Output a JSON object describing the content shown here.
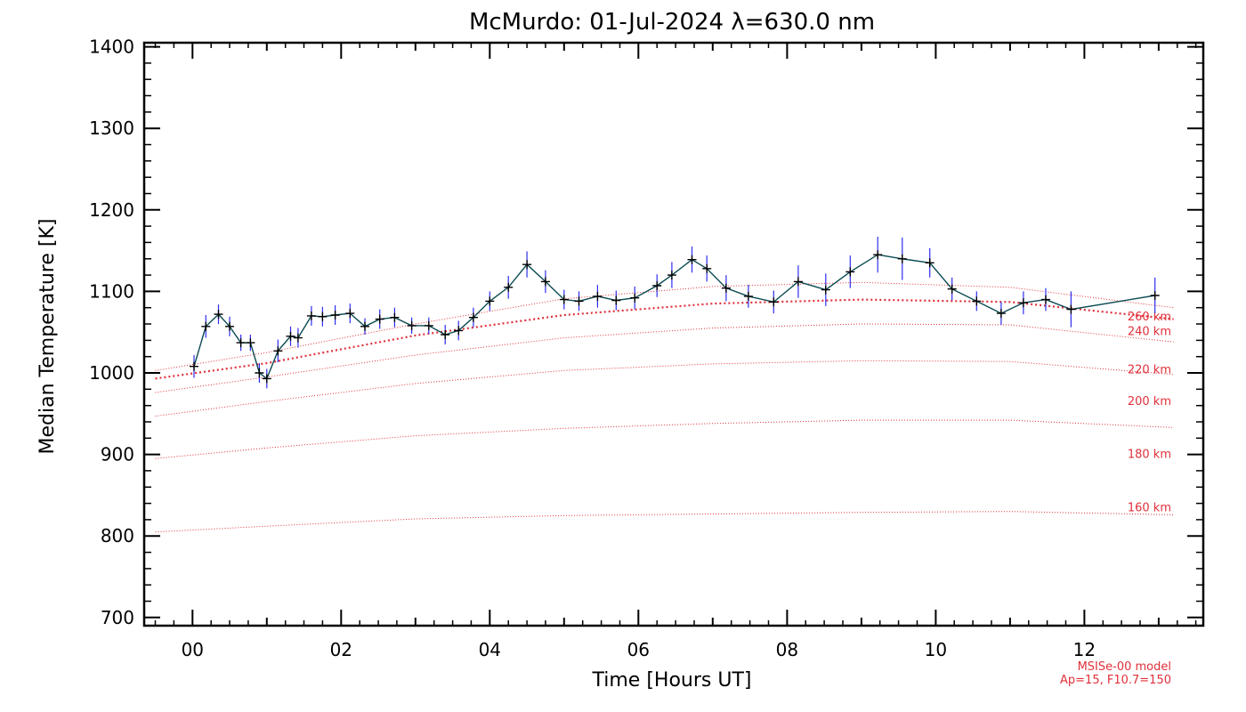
{
  "chart_data": {
    "type": "line",
    "title": "McMurdo: 01-Jul-2024 λ=630.0 nm",
    "xlabel": "Time [Hours UT]",
    "ylabel": "Median Temperature [K]",
    "xlim": [
      -0.65,
      13.6
    ],
    "ylim": [
      690,
      1405
    ],
    "x_ticks": [
      0,
      2,
      4,
      6,
      8,
      10,
      12
    ],
    "x_tick_labels": [
      "00",
      "02",
      "04",
      "06",
      "08",
      "10",
      "12"
    ],
    "y_ticks": [
      700,
      800,
      900,
      1000,
      1100,
      1200,
      1300,
      1400
    ],
    "y_tick_labels": [
      "700",
      "800",
      "900",
      "1000",
      "1100",
      "1200",
      "1300",
      "1400"
    ],
    "grid": false,
    "series": [
      {
        "color": "#0a4a52",
        "marker": "plus",
        "error_color": "#2e2ef0",
        "x": [
          0.02,
          0.18,
          0.35,
          0.5,
          0.65,
          0.78,
          0.9,
          1.0,
          1.15,
          1.32,
          1.42,
          1.6,
          1.75,
          1.92,
          2.12,
          2.32,
          2.52,
          2.72,
          2.95,
          3.18,
          3.4,
          3.58,
          3.78,
          4.0,
          4.25,
          4.5,
          4.75,
          5.0,
          5.2,
          5.45,
          5.7,
          5.95,
          6.25,
          6.45,
          6.72,
          6.92,
          7.18,
          7.48,
          7.82,
          8.15,
          8.52,
          8.85,
          9.22,
          9.55,
          9.92,
          10.22,
          10.55,
          10.88,
          11.18,
          11.48,
          11.82,
          12.95
        ],
        "values": [
          1008,
          1057,
          1072,
          1057,
          1037,
          1037,
          1000,
          993,
          1027,
          1045,
          1043,
          1070,
          1069,
          1071,
          1073,
          1057,
          1066,
          1068,
          1058,
          1058,
          1047,
          1052,
          1068,
          1088,
          1105,
          1133,
          1112,
          1090,
          1088,
          1094,
          1089,
          1092,
          1107,
          1120,
          1139,
          1128,
          1104,
          1094,
          1087,
          1112,
          1102,
          1124,
          1145,
          1140,
          1135,
          1103,
          1088,
          1073,
          1086,
          1090,
          1078,
          1095
        ],
        "errors": [
          14,
          14,
          12,
          12,
          10,
          10,
          12,
          12,
          14,
          12,
          12,
          12,
          12,
          12,
          12,
          10,
          12,
          12,
          10,
          10,
          12,
          12,
          12,
          12,
          14,
          16,
          14,
          12,
          12,
          14,
          12,
          14,
          14,
          16,
          16,
          16,
          16,
          14,
          14,
          20,
          20,
          20,
          22,
          26,
          18,
          14,
          12,
          14,
          14,
          14,
          22,
          22
        ]
      }
    ],
    "model_curves": [
      {
        "label": "160 km",
        "thick": false,
        "x": [
          -0.5,
          1,
          3,
          5,
          7,
          9,
          11,
          13.2
        ],
        "values": [
          805,
          812,
          821,
          825,
          827,
          829,
          830,
          826
        ]
      },
      {
        "label": "180 km",
        "thick": false,
        "x": [
          -0.5,
          1,
          3,
          5,
          7,
          9,
          11,
          13.2
        ],
        "values": [
          895,
          908,
          923,
          932,
          938,
          942,
          942,
          933
        ]
      },
      {
        "label": "200 km",
        "thick": false,
        "x": [
          -0.5,
          1,
          3,
          5,
          7,
          9,
          11,
          13.2
        ],
        "values": [
          947,
          965,
          987,
          1003,
          1011,
          1015,
          1014,
          998
        ]
      },
      {
        "label": "220 km",
        "thick": false,
        "x": [
          -0.5,
          1,
          3,
          5,
          7,
          9,
          11,
          13.2
        ],
        "values": [
          976,
          995,
          1022,
          1043,
          1055,
          1060,
          1059,
          1038
        ]
      },
      {
        "label": "240 km",
        "thick": true,
        "x": [
          -0.5,
          1,
          3,
          5,
          7,
          9,
          11,
          13.2
        ],
        "values": [
          993,
          1012,
          1046,
          1071,
          1085,
          1090,
          1087,
          1066
        ]
      },
      {
        "label": "260 km",
        "thick": false,
        "x": [
          -0.5,
          1,
          3,
          5,
          7,
          9,
          11,
          13.2
        ],
        "values": [
          1003,
          1025,
          1060,
          1091,
          1106,
          1111,
          1105,
          1080
        ]
      }
    ],
    "model_label_values": [
      836,
      901,
      966,
      1005,
      1052,
      1070
    ],
    "annotation_lines": [
      "MSISe-00 model",
      "Ap=15, F10.7=150"
    ]
  },
  "colors": {
    "data_line": "#0a4a52",
    "error_bar": "#2e2ef0",
    "model": "#e0303a",
    "axes": "#000000"
  }
}
